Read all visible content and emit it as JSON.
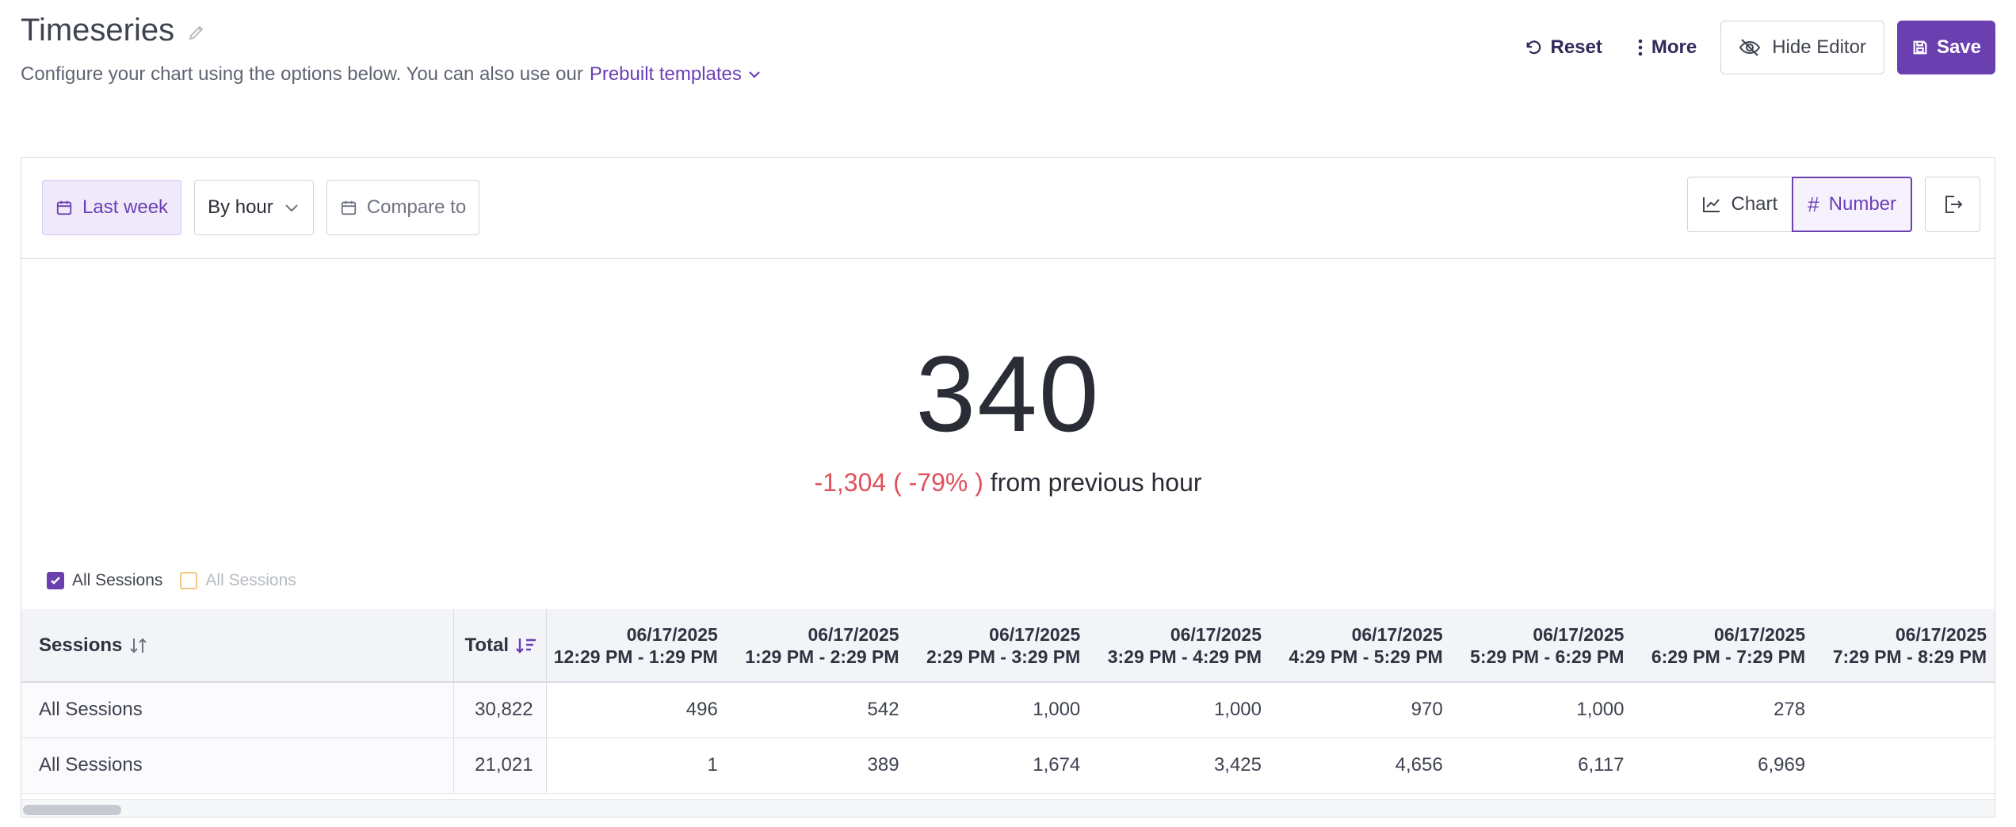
{
  "header": {
    "title": "Timeseries",
    "subtitle": "Configure your chart using the options below. You can also use our",
    "templates_link": "Prebuilt templates"
  },
  "actions": {
    "reset": "Reset",
    "more": "More",
    "hide_editor": "Hide Editor",
    "save": "Save"
  },
  "toolbar": {
    "date_range": "Last week",
    "granularity": "By hour",
    "compare": "Compare to",
    "view_chart": "Chart",
    "view_number": "Number",
    "selected_view": "Number"
  },
  "metric": {
    "value": "340",
    "delta": "-1,304 ( -79% )",
    "delta_label": "from previous hour"
  },
  "legend": [
    {
      "label": "All Sessions",
      "checked": true
    },
    {
      "label": "All Sessions",
      "checked": false
    }
  ],
  "table": {
    "col_sessions": "Sessions",
    "col_total": "Total",
    "columns": [
      {
        "date": "06/17/2025",
        "range": "12:29 PM - 1:29 PM"
      },
      {
        "date": "06/17/2025",
        "range": "1:29 PM - 2:29 PM"
      },
      {
        "date": "06/17/2025",
        "range": "2:29 PM - 3:29 PM"
      },
      {
        "date": "06/17/2025",
        "range": "3:29 PM - 4:29 PM"
      },
      {
        "date": "06/17/2025",
        "range": "4:29 PM - 5:29 PM"
      },
      {
        "date": "06/17/2025",
        "range": "5:29 PM - 6:29 PM"
      },
      {
        "date": "06/17/2025",
        "range": "6:29 PM - 7:29 PM"
      },
      {
        "date": "06/17/2025",
        "range": "7:29 PM - 8:29 PM"
      }
    ],
    "rows": [
      {
        "name": "All Sessions",
        "total": "30,822",
        "values": [
          "496",
          "542",
          "1,000",
          "1,000",
          "970",
          "1,000",
          "278",
          ""
        ]
      },
      {
        "name": "All Sessions",
        "total": "21,021",
        "values": [
          "1",
          "389",
          "1,674",
          "3,425",
          "4,656",
          "6,117",
          "6,969",
          ""
        ]
      }
    ]
  },
  "colors": {
    "accent": "#6a3fb0",
    "negative": "#e0505a",
    "legend_off": "#f2c77f"
  }
}
